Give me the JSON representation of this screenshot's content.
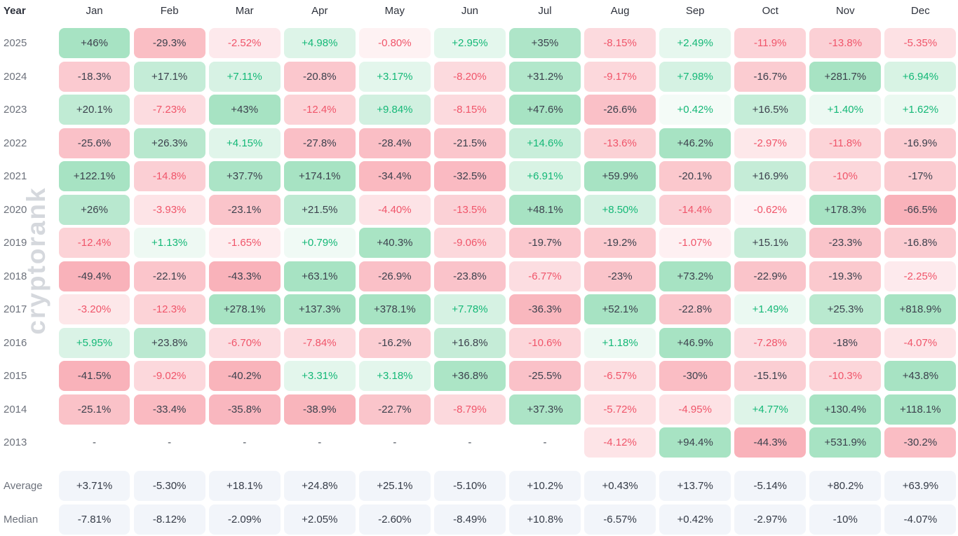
{
  "watermark": "cryptorank",
  "colors": {
    "green_max": "#a7e3c3",
    "red_max": "#f9b2ba",
    "text_dark": "#3c414d",
    "text_green": "#14b877",
    "text_red": "#f0556a",
    "summary_bg": "#f2f5fa",
    "label_gray": "#6d727c",
    "header_dark": "#2e323c",
    "dash_gray": "#4a4f5a"
  },
  "chart_data": {
    "type": "heatmap",
    "title": "Monthly returns heatmap by year",
    "row_header": "Year",
    "columns": [
      "Jan",
      "Feb",
      "Mar",
      "Apr",
      "May",
      "Jun",
      "Jul",
      "Aug",
      "Sep",
      "Oct",
      "Nov",
      "Dec"
    ],
    "rows": [
      {
        "year": "2025",
        "values": [
          "+46%",
          "-29.3%",
          "-2.52%",
          "+4.98%",
          "-0.80%",
          "+2.95%",
          "+35%",
          "-8.15%",
          "+2.49%",
          "-11.9%",
          "-13.8%",
          "-5.35%"
        ]
      },
      {
        "year": "2024",
        "values": [
          "-18.3%",
          "+17.1%",
          "+7.11%",
          "-20.8%",
          "+3.17%",
          "-8.20%",
          "+31.2%",
          "-9.17%",
          "+7.98%",
          "-16.7%",
          "+281.7%",
          "+6.94%"
        ]
      },
      {
        "year": "2023",
        "values": [
          "+20.1%",
          "-7.23%",
          "+43%",
          "-12.4%",
          "+9.84%",
          "-8.15%",
          "+47.6%",
          "-26.6%",
          "+0.42%",
          "+16.5%",
          "+1.40%",
          "+1.62%"
        ]
      },
      {
        "year": "2022",
        "values": [
          "-25.6%",
          "+26.3%",
          "+4.15%",
          "-27.8%",
          "-28.4%",
          "-21.5%",
          "+14.6%",
          "-13.6%",
          "+46.2%",
          "-2.97%",
          "-11.8%",
          "-16.9%"
        ]
      },
      {
        "year": "2021",
        "values": [
          "+122.1%",
          "-14.8%",
          "+37.7%",
          "+174.1%",
          "-34.4%",
          "-32.5%",
          "+6.91%",
          "+59.9%",
          "-20.1%",
          "+16.9%",
          "-10%",
          "-17%"
        ]
      },
      {
        "year": "2020",
        "values": [
          "+26%",
          "-3.93%",
          "-23.1%",
          "+21.5%",
          "-4.40%",
          "-13.5%",
          "+48.1%",
          "+8.50%",
          "-14.4%",
          "-0.62%",
          "+178.3%",
          "-66.5%"
        ]
      },
      {
        "year": "2019",
        "values": [
          "-12.4%",
          "+1.13%",
          "-1.65%",
          "+0.79%",
          "+40.3%",
          "-9.06%",
          "-19.7%",
          "-19.2%",
          "-1.07%",
          "+15.1%",
          "-23.3%",
          "-16.8%"
        ]
      },
      {
        "year": "2018",
        "values": [
          "-49.4%",
          "-22.1%",
          "-43.3%",
          "+63.1%",
          "-26.9%",
          "-23.8%",
          "-6.77%",
          "-23%",
          "+73.2%",
          "-22.9%",
          "-19.3%",
          "-2.25%"
        ]
      },
      {
        "year": "2017",
        "values": [
          "-3.20%",
          "-12.3%",
          "+278.1%",
          "+137.3%",
          "+378.1%",
          "+7.78%",
          "-36.3%",
          "+52.1%",
          "-22.8%",
          "+1.49%",
          "+25.3%",
          "+818.9%"
        ]
      },
      {
        "year": "2016",
        "values": [
          "+5.95%",
          "+23.8%",
          "-6.70%",
          "-7.84%",
          "-16.2%",
          "+16.8%",
          "-10.6%",
          "+1.18%",
          "+46.9%",
          "-7.28%",
          "-18%",
          "-4.07%"
        ]
      },
      {
        "year": "2015",
        "values": [
          "-41.5%",
          "-9.02%",
          "-40.2%",
          "+3.31%",
          "+3.18%",
          "+36.8%",
          "-25.5%",
          "-6.57%",
          "-30%",
          "-15.1%",
          "-10.3%",
          "+43.8%"
        ]
      },
      {
        "year": "2014",
        "values": [
          "-25.1%",
          "-33.4%",
          "-35.8%",
          "-38.9%",
          "-22.7%",
          "-8.79%",
          "+37.3%",
          "-5.72%",
          "-4.95%",
          "+4.77%",
          "+130.4%",
          "+118.1%"
        ]
      },
      {
        "year": "2013",
        "values": [
          "-",
          "-",
          "-",
          "-",
          "-",
          "-",
          "-",
          "-4.12%",
          "+94.4%",
          "-44.3%",
          "+531.9%",
          "-30.2%"
        ]
      }
    ],
    "summary": [
      {
        "label": "Average",
        "values": [
          "+3.71%",
          "-5.30%",
          "+18.1%",
          "+24.8%",
          "+25.1%",
          "-5.10%",
          "+10.2%",
          "+0.43%",
          "+13.7%",
          "-5.14%",
          "+80.2%",
          "+63.9%"
        ]
      },
      {
        "label": "Median",
        "values": [
          "-7.81%",
          "-8.12%",
          "-2.09%",
          "+2.05%",
          "-2.60%",
          "-8.49%",
          "+10.8%",
          "-6.57%",
          "+0.42%",
          "-2.97%",
          "-10%",
          "-4.07%"
        ]
      }
    ]
  }
}
